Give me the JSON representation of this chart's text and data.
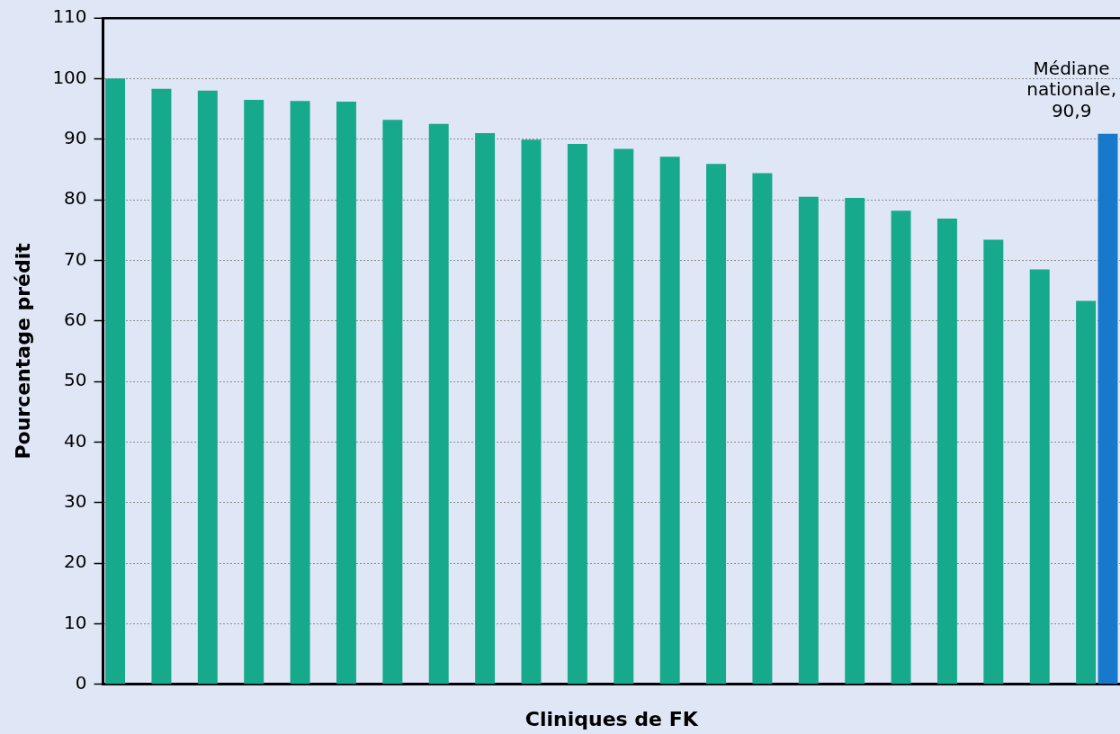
{
  "chart_data": {
    "type": "bar",
    "xlabel": "Cliniques de FK",
    "ylabel": "Pourcentage prédit",
    "categories": [
      null,
      null,
      null,
      null,
      null,
      null,
      null,
      null,
      null,
      null,
      null,
      null,
      null,
      null,
      null,
      null,
      null,
      null,
      null,
      null,
      null,
      null
    ],
    "series": [
      {
        "color": "#17a98b",
        "values": [
          100,
          98.3,
          98,
          96.5,
          96.3,
          96.2,
          93.2,
          92.5,
          91,
          89.9,
          89.2,
          88.4,
          87.1,
          85.9,
          84.4,
          80.5,
          80.3,
          78.2,
          76.9,
          73.4,
          68.5,
          63.3
        ]
      },
      {
        "color": "#1778cc",
        "values": [
          null,
          null,
          null,
          null,
          null,
          null,
          null,
          null,
          null,
          null,
          null,
          null,
          null,
          null,
          null,
          null,
          null,
          null,
          null,
          null,
          null,
          90.9
        ]
      }
    ],
    "ylim": [
      0,
      110
    ],
    "yticks": [
      0,
      10,
      20,
      30,
      40,
      50,
      60,
      70,
      80,
      90,
      100,
      110
    ],
    "grid": "y",
    "annotations": [
      "Médiane nationale, 90,9"
    ]
  }
}
